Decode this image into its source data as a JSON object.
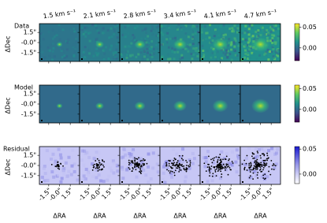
{
  "chart_data": {
    "type": "image_grid",
    "xlabel": "ΔRA",
    "ylabel": "ΔDec",
    "columns": [
      "1.5 km s⁻¹",
      "2.1 km s⁻¹",
      "2.8 km s⁻¹",
      "3.4 km s⁻¹",
      "4.1 km s⁻¹",
      "4.7 km s⁻¹"
    ],
    "xlim": [
      -2.8,
      2.8
    ],
    "xticks": [
      {
        "value": -1.5,
        "label": "-1.5\""
      },
      {
        "value": 0,
        "label": "-0.0\""
      },
      {
        "value": 1.5,
        "label": "1.5\""
      }
    ],
    "ylim": [
      -2.8,
      2.8
    ],
    "yticks": [
      {
        "value": 1.5,
        "label": "1.5\""
      },
      {
        "value": 0,
        "label": "-0.0\""
      },
      {
        "value": -1.5,
        "label": "-1.5\""
      }
    ],
    "rows": [
      {
        "name": "Data",
        "colormap": "viridis",
        "clim": [
          -0.031,
          0.059
        ],
        "cticks": [
          0.05,
          {
            "value": 0,
            "label": "0.00"
          }
        ]
      },
      {
        "name": "Model",
        "colormap": "viridis",
        "clim": [
          -0.031,
          0.059
        ],
        "cticks": [
          0.05,
          {
            "value": 0,
            "label": "0.00"
          }
        ]
      },
      {
        "name": "Residual",
        "colormap": "blues",
        "clim": [
          -0.019,
          0.055
        ],
        "cticks": [
          0.05,
          {
            "value": 0,
            "label": "0.00"
          }
        ]
      }
    ]
  }
}
